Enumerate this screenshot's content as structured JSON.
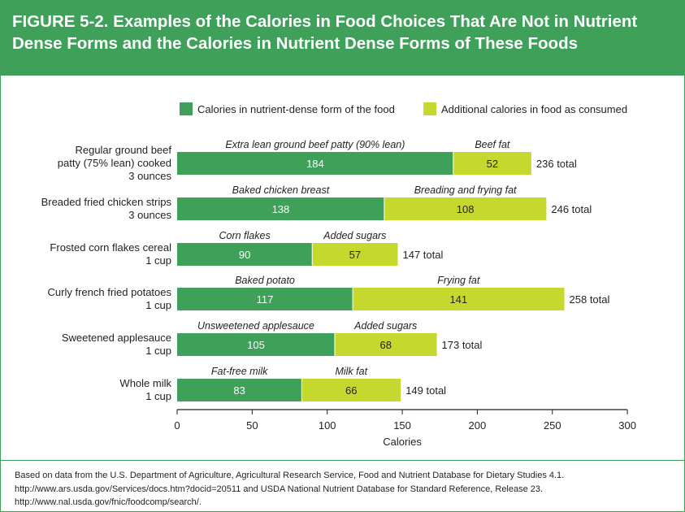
{
  "figure": {
    "title": "FIGURE 5-2. Examples of the Calories in Food Choices That Are Not in Nutrient  Dense Forms and the Calories in Nutrient  Dense Forms of These Foods",
    "source": "Based on data from the U.S. Department of Agriculture, Agricultural Research Service, Food and Nutrient Database for Dietary Studies 4.1. http://www.ars.usda.gov/Services/docs.htm?docid=20511 and USDA National Nutrient Database for Standard Reference, Release 23. http://www.nal.usda.gov/fnic/foodcomp/search/."
  },
  "colors": {
    "header_green": "#3fa05a",
    "nutrient_dense": "#3fa05a",
    "additional": "#c5d82e",
    "text": "#231f20"
  },
  "chart_data": {
    "type": "bar",
    "orientation": "horizontal",
    "stacked": true,
    "xlabel": "Calories",
    "xlim": [
      0,
      300
    ],
    "xticks": [
      0,
      50,
      100,
      150,
      200,
      250,
      300
    ],
    "grid": false,
    "legend_position": "top",
    "total_suffix": "total",
    "categories": [
      [
        "Regular ground beef",
        "patty (75% lean) cooked",
        "3 ounces"
      ],
      [
        "Breaded fried chicken strips",
        "3 ounces"
      ],
      [
        "Frosted corn flakes cereal",
        "1 cup"
      ],
      [
        "Curly french fried potatoes",
        "1 cup"
      ],
      [
        "Sweetened applesauce",
        "1 cup"
      ],
      [
        "Whole milk",
        "1 cup"
      ]
    ],
    "series": [
      {
        "name": "Calories in nutrient-dense form of the food",
        "color": "#3fa05a",
        "values": [
          184,
          138,
          90,
          117,
          105,
          83
        ],
        "segment_labels": [
          "Extra lean ground beef patty (90% lean)",
          "Baked chicken breast",
          "Corn flakes",
          "Baked potato",
          "Unsweetened applesauce",
          "Fat-free milk"
        ]
      },
      {
        "name": "Additional calories in food as consumed",
        "color": "#c5d82e",
        "values": [
          52,
          108,
          57,
          141,
          68,
          66
        ],
        "segment_labels": [
          "Beef fat",
          "Breading and frying fat",
          "Added sugars",
          "Frying fat",
          "Added sugars",
          "Milk fat"
        ]
      }
    ],
    "totals": [
      236,
      246,
      147,
      258,
      173,
      149
    ]
  }
}
